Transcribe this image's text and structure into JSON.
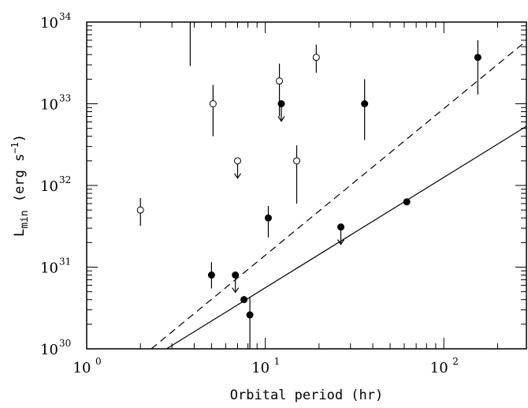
{
  "chart_data": {
    "type": "scatter",
    "x_scale": "log",
    "y_scale": "log",
    "xlim": [
      1,
      290
    ],
    "ylim": [
      1e+30,
      1e+34
    ],
    "xlabel": "Orbital period (hr)",
    "ylabel": {
      "base": "L",
      "sub": "min",
      "units_open": " (erg s",
      "units_sup": "−1",
      "units_close": ")"
    },
    "x_ticks": [
      {
        "value": 1,
        "label": "10",
        "exp": "0"
      },
      {
        "value": 10,
        "label": "10",
        "exp": "1"
      },
      {
        "value": 100,
        "label": "10",
        "exp": "2"
      }
    ],
    "y_ticks": [
      {
        "value": 1e+30,
        "label": "10",
        "exp": "30"
      },
      {
        "value": 1e+31,
        "label": "10",
        "exp": "31"
      },
      {
        "value": 1e+32,
        "label": "10",
        "exp": "32"
      },
      {
        "value": 1e+33,
        "label": "10",
        "exp": "33"
      },
      {
        "value": 1e+34,
        "label": "10",
        "exp": "34"
      }
    ],
    "series": [
      {
        "marker": "filled-circle",
        "points": [
          {
            "x": 5.0,
            "y": 8e+30,
            "err": [
              5.5e+30,
              1.15e+31
            ]
          },
          {
            "x": 6.8,
            "y": 8e+30,
            "upper_limit": true
          },
          {
            "x": 7.6,
            "y": 4e+30
          },
          {
            "x": 8.2,
            "y": 2.6e+30,
            "err": [
              1e+30,
              4.2e+30
            ]
          },
          {
            "x": 10.4,
            "y": 4e+31,
            "err": [
              2.3e+31,
              5.6e+31
            ]
          },
          {
            "x": 12.3,
            "y": 1e+33,
            "upper_limit": true
          },
          {
            "x": 26.5,
            "y": 3.1e+31,
            "upper_limit": true
          },
          {
            "x": 36,
            "y": 1e+33,
            "err": [
              3.6e+32,
              2e+33
            ]
          },
          {
            "x": 62,
            "y": 6.3e+31
          },
          {
            "x": 155,
            "y": 3.7e+33,
            "err": [
              1.3e+33,
              6e+33
            ]
          }
        ]
      },
      {
        "marker": "open-circle",
        "points": [
          {
            "x": 2.0,
            "y": 5e+31,
            "err": [
              3.2e+31,
              7e+31
            ]
          },
          {
            "x": 5.1,
            "y": 1e+33,
            "err": [
              4e+32,
              1.7e+33
            ]
          },
          {
            "x": 7.0,
            "y": 2e+32,
            "upper_limit": true
          },
          {
            "x": 12.0,
            "y": 1.9e+33,
            "err": [
              7e+32,
              3.1e+33
            ]
          },
          {
            "x": 15.0,
            "y": 2e+32,
            "err": [
              6e+31,
              3.1e+32
            ]
          },
          {
            "x": 19.3,
            "y": 3.7e+33,
            "err": [
              2.4e+33,
              5.3e+33
            ]
          }
        ]
      },
      {
        "marker": "bar-only",
        "points": [
          {
            "x": 3.8,
            "y": 1e+34,
            "err": [
              2.9e+33,
              1e+34
            ]
          }
        ]
      }
    ],
    "lines": [
      {
        "style": "solid",
        "points": [
          {
            "x": 2.8,
            "y": 1e+30
          },
          {
            "x": 290,
            "y": 5.3e+32
          }
        ]
      },
      {
        "style": "dashed",
        "points": [
          {
            "x": 2.3,
            "y": 1e+30
          },
          {
            "x": 290,
            "y": 5.9e+33
          }
        ]
      }
    ],
    "grid": false,
    "legend": "none"
  }
}
